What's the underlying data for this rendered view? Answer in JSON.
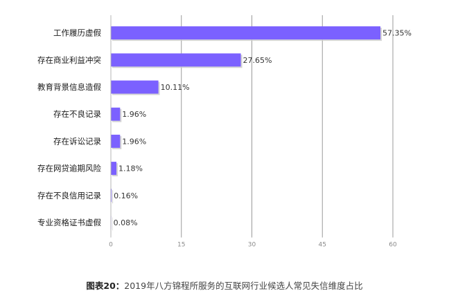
{
  "chart_data": {
    "type": "bar",
    "orientation": "horizontal",
    "categories": [
      "工作履历虚假",
      "存在商业利益冲突",
      "教育背景信息造假",
      "存在不良记录",
      "存在诉讼记录",
      "存在网贷逾期风险",
      "存在不良信用记录",
      "专业资格证书虚假"
    ],
    "values": [
      57.35,
      27.65,
      10.11,
      1.96,
      1.96,
      1.18,
      0.16,
      0.08
    ],
    "value_labels": [
      "57.35%",
      "27.65%",
      "10.11%",
      "1.96%",
      "1.96%",
      "1.18%",
      "0.16%",
      "0.08%"
    ],
    "x_ticks": [
      0,
      15,
      30,
      45,
      60
    ],
    "xlim": [
      0,
      60
    ],
    "grid": "vertical",
    "bar_color": "#7b61ff"
  },
  "caption": {
    "label": "图表20：",
    "text": "2019年八方锦程所服务的互联网行业候选人常见失信维度占比"
  }
}
